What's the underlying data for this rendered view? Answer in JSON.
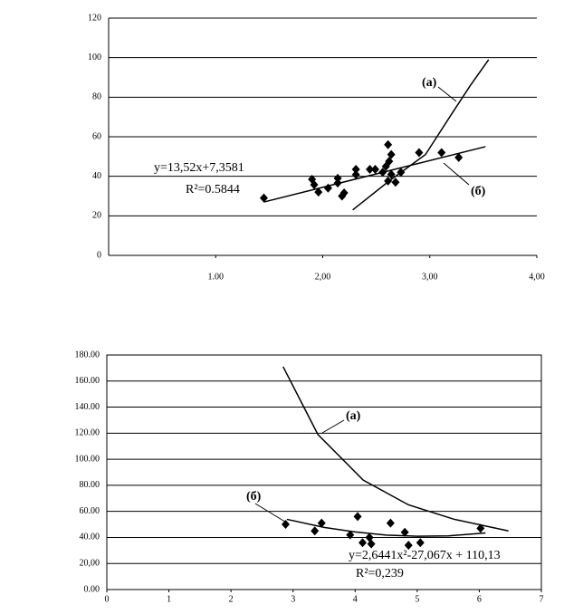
{
  "charts": [
    {
      "chart_data": {
        "type": "scatter",
        "xlim": [
          0,
          4
        ],
        "ylim": [
          0,
          120
        ],
        "xticks": [
          {
            "value": 1,
            "label": "1.00"
          },
          {
            "value": 2,
            "label": "2,00"
          },
          {
            "value": 3,
            "label": "3,00"
          },
          {
            "value": 4,
            "label": "4,00"
          }
        ],
        "yticks": [
          0,
          20,
          40,
          60,
          80,
          100,
          120
        ],
        "grid": true,
        "series": [
          {
            "mode": "markers",
            "marker": "diamond",
            "color": "#000000",
            "x": [
              1.45,
              1.9,
              1.92,
              1.96,
              2.05,
              2.14,
              2.14,
              2.18,
              2.2,
              2.31,
              2.31,
              2.44,
              2.49,
              2.56,
              2.59,
              2.61,
              2.61,
              2.62,
              2.64,
              2.64,
              2.68,
              2.73,
              2.9,
              3.11,
              3.27
            ],
            "values": [
              29,
              38.5,
              35.7,
              32,
              34,
              39,
              36.6,
              30,
              31.6,
              43.5,
              40.8,
              43.5,
              43.5,
              42,
              45,
              56,
              37.6,
              47.6,
              51,
              41,
              37,
              42,
              52,
              52,
              49.5
            ]
          },
          {
            "name": "(а)",
            "mode": "line",
            "color": "#000000",
            "x": [
              2.28,
              2.62,
              2.96,
              3.21,
              3.38,
              3.55
            ],
            "values": [
              23,
              37.6,
              51,
              72,
              86,
              99
            ]
          },
          {
            "name": "(б)",
            "mode": "line",
            "color": "#000000",
            "x": [
              1.45,
              3.52
            ],
            "values": [
              27,
              55
            ]
          }
        ],
        "annotations": [
          "y=13,52x+7,3581",
          "R²=0.5844"
        ]
      }
    },
    {
      "chart_data": {
        "type": "scatter",
        "xlim": [
          0,
          7
        ],
        "ylim": [
          0,
          180
        ],
        "xticks": [
          0,
          1,
          2,
          3,
          4,
          5,
          6,
          7
        ],
        "yticks": [
          {
            "value": 0,
            "label": "0.00"
          },
          {
            "value": 20,
            "label": "20,00"
          },
          {
            "value": 40,
            "label": "40.00"
          },
          {
            "value": 60,
            "label": "60.00"
          },
          {
            "value": 80,
            "label": "80.00"
          },
          {
            "value": 100,
            "label": "100.00"
          },
          {
            "value": 120,
            "label": "120.00"
          },
          {
            "value": 140,
            "label": "140.00"
          },
          {
            "value": 160,
            "label": "160.00"
          },
          {
            "value": 180,
            "label": "180.00"
          }
        ],
        "grid": true,
        "series": [
          {
            "mode": "markers",
            "marker": "diamond",
            "color": "#000000",
            "x": [
              2.88,
              3.35,
              3.46,
              3.92,
              4.04,
              4.12,
              4.23,
              4.26,
              4.57,
              4.8,
              4.86,
              5.05,
              6.02
            ],
            "values": [
              50,
              45,
              51,
              42,
              56,
              36,
              40,
              35,
              51,
              44,
              34,
              36,
              47
            ]
          },
          {
            "name": "(а)",
            "mode": "line",
            "color": "#000000",
            "x": [
              2.84,
              3.4,
              4.13,
              4.86,
              5.59,
              6.47
            ],
            "values": [
              171,
              119,
              84,
              65,
              54,
              45
            ]
          },
          {
            "name": "(б)",
            "mode": "line",
            "color": "#000000",
            "x": [
              2.9,
              3.5,
              4,
              4.5,
              5,
              5.5,
              6.1
            ],
            "values": [
              53.9,
              47.7,
              44.2,
              41.8,
              40.9,
              41.2,
              43.4
            ]
          }
        ],
        "annotations": [
          "y=2,6441x²-27,067x + 110,13",
          "R²=0,239"
        ]
      }
    }
  ]
}
